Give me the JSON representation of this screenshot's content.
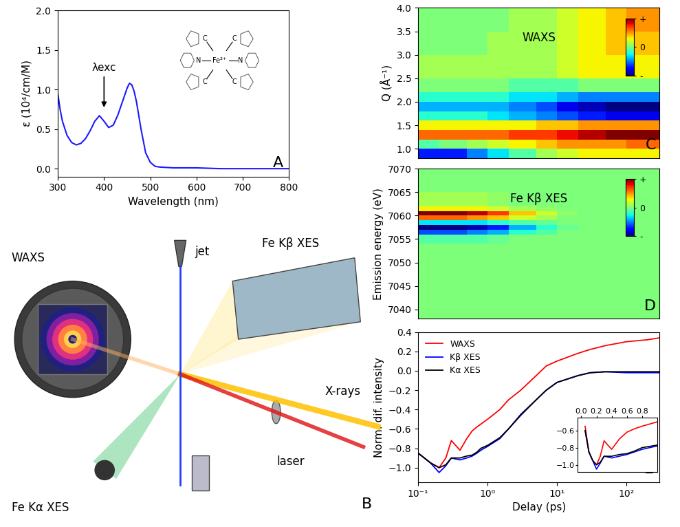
{
  "chart_data": [
    {
      "panel_label": "A",
      "type": "line",
      "x_label": "Wavelength (nm)",
      "y_label": "ε (10⁴/cm/M)",
      "x": [
        300,
        305,
        310,
        320,
        330,
        340,
        350,
        360,
        370,
        380,
        390,
        400,
        410,
        420,
        430,
        440,
        450,
        455,
        460,
        465,
        470,
        480,
        490,
        500,
        510,
        520,
        550,
        600,
        650,
        700,
        750,
        800
      ],
      "values": [
        0.95,
        0.75,
        0.6,
        0.42,
        0.33,
        0.3,
        0.32,
        0.38,
        0.48,
        0.6,
        0.67,
        0.6,
        0.52,
        0.55,
        0.68,
        0.85,
        1.02,
        1.08,
        1.06,
        0.98,
        0.85,
        0.5,
        0.2,
        0.08,
        0.03,
        0.02,
        0.01,
        0.01,
        0.0,
        0.0,
        0.0,
        0.0
      ],
      "color": "#1a1aff",
      "xlim": [
        300,
        800
      ],
      "xticks": [
        300,
        400,
        500,
        600,
        700,
        800
      ],
      "ylim": [
        -0.1,
        2.0
      ],
      "yticks": [
        {
          "value": 0.0,
          "label": "0.0"
        },
        {
          "value": 0.5,
          "label": "0.5"
        },
        {
          "value": 1.0,
          "label": "1.0"
        },
        {
          "value": 1.5,
          "label": "1.5"
        },
        {
          "value": 2.0,
          "label": "2.0"
        }
      ],
      "annotations": [
        {
          "text": "λexc",
          "x": 400,
          "y": 0.75
        }
      ],
      "molecule": {
        "metal": "Fe²⁺",
        "donors": [
          "N",
          "C",
          "C",
          "N",
          "C",
          "C"
        ]
      }
    },
    {
      "panel_label": "C",
      "type": "heatmap",
      "title": "WAXS",
      "y_label": "Q (Å⁻¹)",
      "log": "x",
      "tick_labels": "y",
      "xlim": [
        0.1,
        300
      ],
      "xticks": [],
      "ylim": [
        0.8,
        4.0
      ],
      "yticks": [
        {
          "value": 1.0,
          "label": "1.0"
        },
        {
          "value": 1.5,
          "label": "1.5"
        },
        {
          "value": 2.0,
          "label": "2.0"
        },
        {
          "value": 2.5,
          "label": "2.5"
        },
        {
          "value": 3.0,
          "label": "3.0"
        },
        {
          "value": 3.5,
          "label": "3.5"
        },
        {
          "value": 4.0,
          "label": "4.0"
        }
      ],
      "x_bins": [
        0.1,
        0.2,
        0.5,
        1,
        2,
        5,
        10,
        20,
        50,
        100,
        300
      ],
      "y_bins": [
        0.8,
        1.0,
        1.2,
        1.4,
        1.6,
        1.8,
        2.0,
        2.2,
        2.5,
        3.0,
        3.5,
        4.0
      ],
      "cells": [
        [
          -0.7,
          -0.7,
          -0.5,
          -0.3,
          -0.1,
          0.1,
          0.2,
          0.3,
          0.3,
          0.3
        ],
        [
          -0.1,
          0.0,
          0.1,
          0.2,
          0.3,
          0.4,
          0.5,
          0.5,
          0.5,
          0.6
        ],
        [
          0.6,
          0.6,
          0.6,
          0.6,
          0.7,
          0.7,
          0.8,
          0.9,
          1.0,
          1.0
        ],
        [
          0.3,
          0.3,
          0.3,
          0.3,
          0.3,
          0.4,
          0.4,
          0.5,
          0.5,
          0.5
        ],
        [
          -0.2,
          -0.2,
          -0.2,
          -0.3,
          -0.4,
          -0.5,
          -0.6,
          -0.7,
          -0.8,
          -0.8
        ],
        [
          -0.4,
          -0.4,
          -0.4,
          -0.4,
          -0.5,
          -0.6,
          -0.8,
          -0.9,
          -1.0,
          -1.0
        ],
        [
          -0.2,
          -0.2,
          -0.2,
          -0.2,
          -0.3,
          -0.3,
          -0.4,
          -0.5,
          -0.5,
          -0.5
        ],
        [
          0.0,
          0.0,
          0.0,
          0.0,
          -0.1,
          -0.1,
          -0.1,
          0.0,
          0.0,
          0.0
        ],
        [
          0.1,
          0.1,
          0.1,
          0.1,
          0.1,
          0.1,
          0.2,
          0.3,
          0.3,
          0.3
        ],
        [
          0.0,
          0.0,
          0.0,
          0.1,
          0.1,
          0.1,
          0.2,
          0.3,
          0.4,
          0.4
        ],
        [
          0.0,
          0.0,
          0.0,
          0.0,
          0.1,
          0.1,
          0.2,
          0.3,
          0.4,
          0.5
        ]
      ],
      "colorbar": {
        "range": [
          -1,
          1
        ],
        "ticks": [
          {
            "value": 1,
            "label": "+"
          },
          0,
          {
            "value": -1,
            "label": "-"
          }
        ]
      }
    },
    {
      "panel_label": "D",
      "type": "heatmap",
      "title": "Fe Kβ XES",
      "y_label": "Emission energy (eV)",
      "log": "x",
      "tick_labels": "y",
      "xlim": [
        0.1,
        300
      ],
      "xticks": [],
      "ylim": [
        7038,
        7070
      ],
      "yticks": [
        7040,
        7045,
        7050,
        7055,
        7060,
        7065,
        7070
      ],
      "x_bins": [
        0.1,
        0.2,
        0.5,
        1,
        2,
        5,
        10,
        20,
        50,
        100,
        300
      ],
      "y_bins": [
        7038,
        7050,
        7054,
        7056,
        7057,
        7058,
        7059,
        7060,
        7061,
        7062,
        7065,
        7070
      ],
      "cells": [
        [
          0.0,
          0.0,
          0.0,
          0.0,
          0.0,
          0.0,
          0.0,
          0.0,
          0.0,
          0.0
        ],
        [
          0.0,
          0.0,
          0.0,
          0.0,
          0.0,
          0.0,
          0.0,
          0.0,
          0.0,
          0.0
        ],
        [
          -0.1,
          -0.1,
          -0.1,
          -0.05,
          0.0,
          0.0,
          0.0,
          0.0,
          0.0,
          0.0
        ],
        [
          -0.6,
          -0.6,
          -0.5,
          -0.4,
          -0.2,
          -0.1,
          0.0,
          0.0,
          0.0,
          0.0
        ],
        [
          -1.0,
          -1.0,
          -0.9,
          -0.7,
          -0.4,
          -0.2,
          -0.05,
          0.0,
          0.0,
          0.0
        ],
        [
          -0.3,
          -0.3,
          -0.3,
          -0.2,
          -0.1,
          -0.05,
          0.0,
          0.0,
          0.0,
          0.0
        ],
        [
          0.6,
          0.6,
          0.5,
          0.4,
          0.2,
          0.1,
          0.0,
          0.0,
          0.0,
          0.0
        ],
        [
          1.0,
          1.0,
          0.9,
          0.7,
          0.4,
          0.2,
          0.05,
          0.0,
          0.0,
          0.0
        ],
        [
          0.3,
          0.3,
          0.3,
          0.2,
          0.1,
          0.05,
          0.0,
          0.0,
          0.0,
          0.0
        ],
        [
          0.1,
          0.1,
          0.1,
          0.05,
          0.0,
          0.0,
          0.0,
          0.0,
          0.0,
          0.0
        ],
        [
          0.0,
          0.0,
          0.0,
          0.0,
          0.0,
          0.0,
          0.0,
          0.0,
          0.0,
          0.0
        ]
      ],
      "colorbar": {
        "range": [
          -1,
          1
        ],
        "ticks": [
          {
            "value": 1,
            "label": "+"
          },
          0,
          {
            "value": -1,
            "label": "-"
          }
        ]
      }
    },
    {
      "panel_label": "E",
      "type": "line",
      "x_label": "Delay (ps)",
      "y_label": "Norm. dif. intensity",
      "log": "x",
      "legend": "upper left",
      "xlim": [
        0.1,
        300
      ],
      "xticks": [
        {
          "value": 0.1,
          "label": "10⁻¹"
        },
        {
          "value": 1,
          "label": "10⁰"
        },
        {
          "value": 10,
          "label": "10¹"
        },
        {
          "value": 100,
          "label": "10²"
        }
      ],
      "ylim": [
        -1.15,
        0.4
      ],
      "yticks": [
        {
          "value": -1.0,
          "label": "−1.0"
        },
        {
          "value": -0.8,
          "label": "−0.8"
        },
        {
          "value": -0.6,
          "label": "−0.6"
        },
        {
          "value": -0.4,
          "label": "−0.4"
        },
        {
          "value": -0.2,
          "label": "−0.2"
        },
        {
          "value": 0.0,
          "label": "0.0"
        },
        {
          "value": 0.2,
          "label": "0.2"
        },
        {
          "value": 0.4,
          "label": "0.4"
        }
      ],
      "x": [
        0.05,
        0.1,
        0.15,
        0.2,
        0.25,
        0.3,
        0.4,
        0.5,
        0.6,
        0.7,
        0.8,
        1.0,
        1.5,
        2,
        3,
        5,
        7,
        10,
        20,
        30,
        50,
        100,
        200,
        300
      ],
      "series": [
        {
          "name": "WAXS",
          "color": "red",
          "values": [
            -0.55,
            -0.85,
            -0.95,
            -1.0,
            -0.9,
            -0.72,
            -0.82,
            -0.7,
            -0.62,
            -0.58,
            -0.55,
            -0.5,
            -0.4,
            -0.3,
            -0.2,
            -0.05,
            0.05,
            0.1,
            0.18,
            0.22,
            0.26,
            0.3,
            0.32,
            0.34
          ]
        },
        {
          "name": "Kβ XES",
          "color": "blue",
          "values": [
            -0.6,
            -0.85,
            -0.95,
            -1.05,
            -0.98,
            -0.9,
            -0.92,
            -0.9,
            -0.88,
            -0.85,
            -0.82,
            -0.78,
            -0.7,
            -0.6,
            -0.45,
            -0.3,
            -0.2,
            -0.12,
            -0.05,
            -0.02,
            -0.01,
            -0.02,
            -0.02,
            -0.02
          ]
        },
        {
          "name": "Kα XES",
          "color": "black",
          "values": [
            -0.6,
            -0.85,
            -0.95,
            -1.0,
            -0.97,
            -0.9,
            -0.9,
            -0.88,
            -0.87,
            -0.84,
            -0.8,
            -0.77,
            -0.69,
            -0.6,
            -0.46,
            -0.3,
            -0.2,
            -0.12,
            -0.05,
            -0.02,
            -0.01,
            -0.01,
            -0.01,
            -0.01
          ]
        }
      ],
      "inset": {
        "xlim": [
          -0.05,
          1.0
        ],
        "xticks": [
          {
            "value": 0.0,
            "label": "0.0"
          },
          {
            "value": 0.2,
            "label": "0.2"
          },
          {
            "value": 0.4,
            "label": "0.4"
          },
          {
            "value": 0.6,
            "label": "0.6"
          },
          {
            "value": 0.8,
            "label": "0.8"
          }
        ],
        "ylim": [
          -1.08,
          -0.45
        ],
        "yticks": [
          {
            "value": -0.6,
            "label": "−0.6"
          },
          {
            "value": -0.8,
            "label": "−0.8"
          },
          {
            "value": -1.0,
            "label": "−1.0"
          }
        ]
      }
    }
  ],
  "diagram": {
    "panel_label": "B",
    "labels": {
      "detector": "WAXS",
      "jet": "jet",
      "kbeta": "Fe Kβ XES",
      "xrays": "X-rays",
      "laser": "laser",
      "kalpha": "Fe Kα XES"
    }
  }
}
